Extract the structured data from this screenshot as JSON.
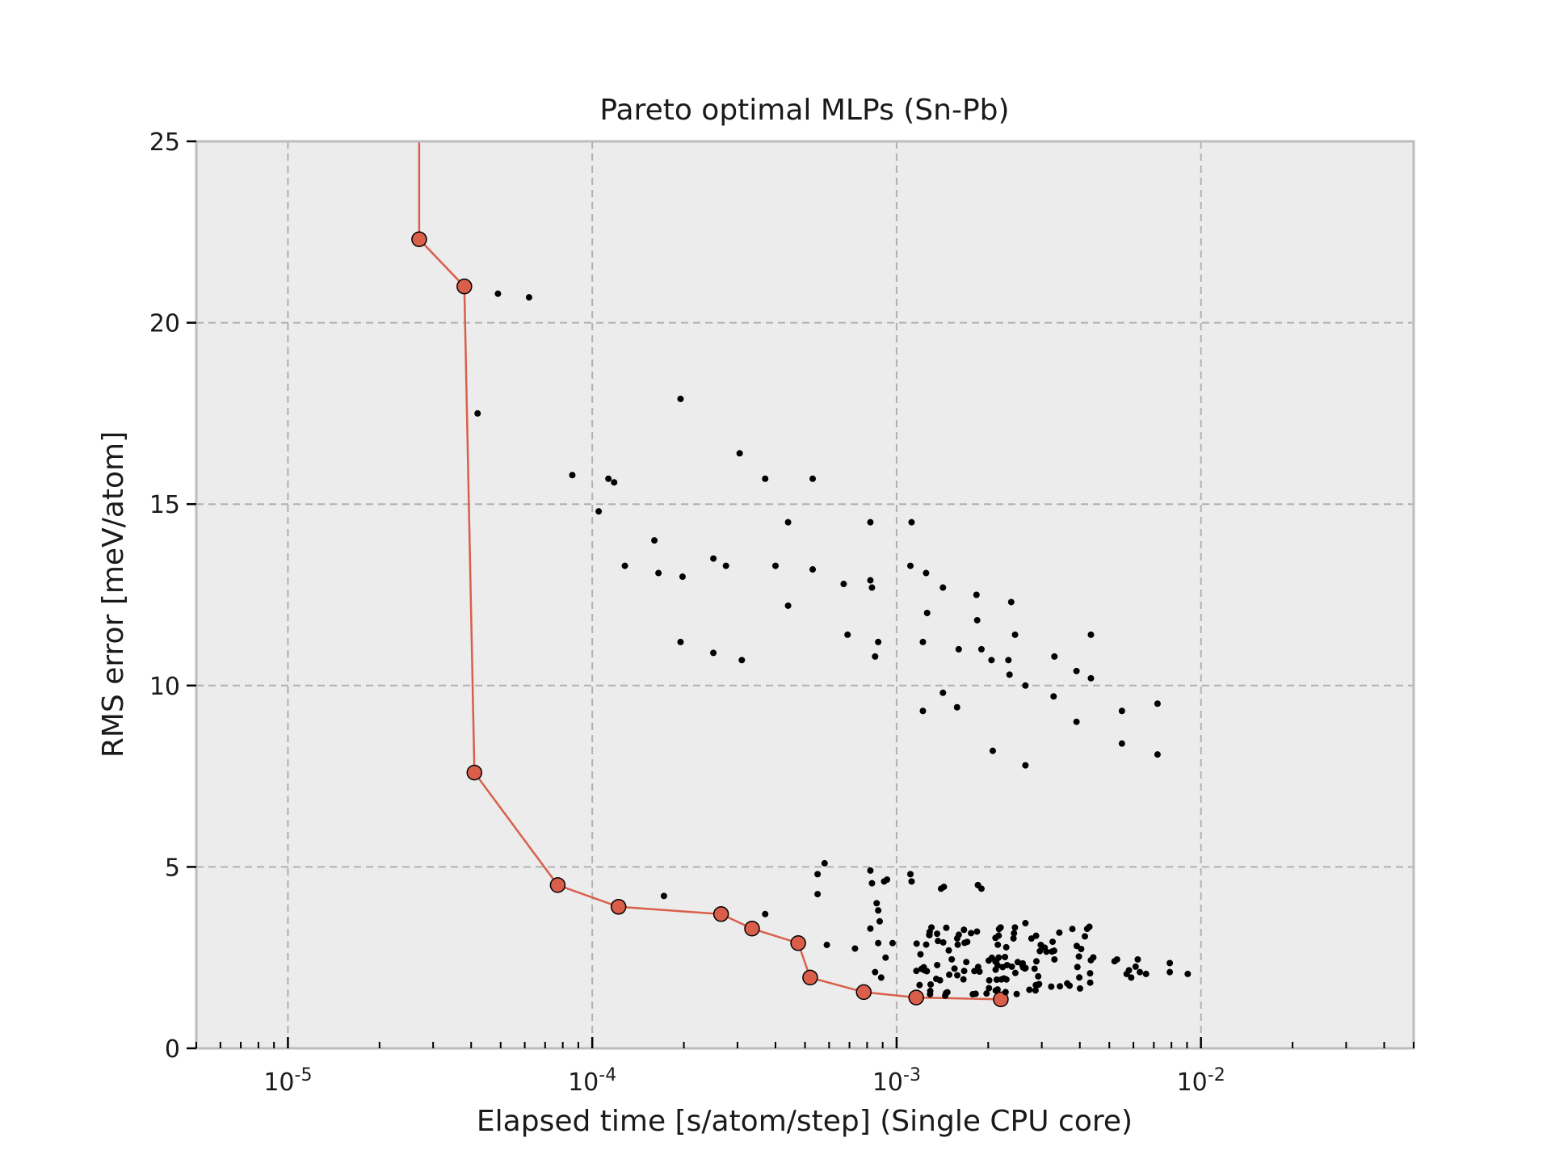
{
  "chart_data": {
    "type": "scatter",
    "title": "Pareto optimal MLPs (Sn-Pb)",
    "xlabel": "Elapsed time [s/atom/step] (Single CPU core)",
    "ylabel": "RMS error [meV/atom]",
    "x_scale": "log",
    "xlim": [
      5e-06,
      0.05
    ],
    "ylim": [
      0,
      25
    ],
    "x_ticks": [
      {
        "value": 1e-05,
        "base": "10",
        "exp": "-5"
      },
      {
        "value": 0.0001,
        "base": "10",
        "exp": "-4"
      },
      {
        "value": 0.001,
        "base": "10",
        "exp": "-3"
      },
      {
        "value": 0.01,
        "base": "10",
        "exp": "-2"
      }
    ],
    "y_ticks": [
      0,
      5,
      10,
      15,
      20,
      25
    ],
    "grid": true,
    "colors": {
      "background": "#ececec",
      "pareto": "#d95f4b",
      "points": "#000000",
      "grid": "#b0b0b0",
      "frame": "#bdbdbd"
    },
    "series": [
      {
        "kind": "pareto-front",
        "points": [
          [
            2.7e-05,
            25.0
          ],
          [
            2.7e-05,
            22.3
          ],
          [
            3.8e-05,
            21.0
          ],
          [
            4.1e-05,
            7.6
          ],
          [
            7.7e-05,
            4.5
          ],
          [
            0.000122,
            3.9
          ],
          [
            0.000265,
            3.7
          ],
          [
            0.000335,
            3.3
          ],
          [
            0.000475,
            2.9
          ],
          [
            0.00052,
            1.95
          ],
          [
            0.00078,
            1.55
          ],
          [
            0.00116,
            1.4
          ],
          [
            0.0022,
            1.35
          ]
        ]
      },
      {
        "kind": "candidates",
        "points": [
          [
            4.9e-05,
            20.8
          ],
          [
            6.2e-05,
            20.7
          ],
          [
            4.2e-05,
            17.5
          ],
          [
            0.000195,
            17.9
          ],
          [
            8.6e-05,
            15.8
          ],
          [
            0.000105,
            14.8
          ],
          [
            0.000113,
            15.7
          ],
          [
            0.000118,
            15.6
          ],
          [
            0.000305,
            16.4
          ],
          [
            0.00037,
            15.7
          ],
          [
            0.00053,
            15.7
          ],
          [
            0.00016,
            14.0
          ],
          [
            0.000128,
            13.3
          ],
          [
            0.000165,
            13.1
          ],
          [
            0.000198,
            13.0
          ],
          [
            0.00025,
            13.5
          ],
          [
            0.000275,
            13.3
          ],
          [
            0.0004,
            13.3
          ],
          [
            0.00044,
            14.5
          ],
          [
            0.00053,
            13.2
          ],
          [
            0.00044,
            12.2
          ],
          [
            0.00067,
            12.8
          ],
          [
            0.00082,
            12.9
          ],
          [
            0.00083,
            12.7
          ],
          [
            0.00082,
            14.5
          ],
          [
            0.00112,
            14.5
          ],
          [
            0.00111,
            13.3
          ],
          [
            0.00125,
            13.1
          ],
          [
            0.00142,
            12.7
          ],
          [
            0.00183,
            12.5
          ],
          [
            0.00238,
            12.3
          ],
          [
            0.00126,
            12.0
          ],
          [
            0.00184,
            11.8
          ],
          [
            0.0019,
            11.0
          ],
          [
            0.00245,
            11.4
          ],
          [
            0.000195,
            11.2
          ],
          [
            0.00025,
            10.9
          ],
          [
            0.00031,
            10.7
          ],
          [
            0.00069,
            11.4
          ],
          [
            0.00087,
            11.2
          ],
          [
            0.00085,
            10.8
          ],
          [
            0.00122,
            11.2
          ],
          [
            0.0016,
            11.0
          ],
          [
            0.00205,
            10.7
          ],
          [
            0.00233,
            10.7
          ],
          [
            0.00235,
            10.3
          ],
          [
            0.00265,
            10.0
          ],
          [
            0.0033,
            10.8
          ],
          [
            0.0039,
            10.4
          ],
          [
            0.00435,
            11.4
          ],
          [
            0.00435,
            10.2
          ],
          [
            0.00142,
            9.8
          ],
          [
            0.00122,
            9.3
          ],
          [
            0.00158,
            9.4
          ],
          [
            0.00328,
            9.7
          ],
          [
            0.0039,
            9.0
          ],
          [
            0.0055,
            9.3
          ],
          [
            0.0072,
            9.5
          ],
          [
            0.00207,
            8.2
          ],
          [
            0.0055,
            8.4
          ],
          [
            0.0072,
            8.1
          ],
          [
            0.00265,
            7.8
          ],
          [
            0.000172,
            4.2
          ],
          [
            0.00055,
            4.8
          ],
          [
            0.00058,
            5.1
          ],
          [
            0.00055,
            4.25
          ],
          [
            0.00082,
            4.9
          ],
          [
            0.00083,
            4.55
          ],
          [
            0.00091,
            4.6
          ],
          [
            0.00093,
            4.65
          ],
          [
            0.00111,
            4.8
          ],
          [
            0.00112,
            4.6
          ],
          [
            0.0014,
            4.4
          ],
          [
            0.00143,
            4.45
          ],
          [
            0.00185,
            4.5
          ],
          [
            0.0019,
            4.4
          ],
          [
            0.00086,
            4.0
          ],
          [
            0.00087,
            3.8
          ],
          [
            0.00037,
            3.7
          ],
          [
            0.00082,
            3.3
          ],
          [
            0.00088,
            3.5
          ],
          [
            0.00087,
            2.9
          ],
          [
            0.00059,
            2.85
          ],
          [
            0.00073,
            2.75
          ],
          [
            0.00097,
            2.9
          ],
          [
            0.00085,
            2.1
          ],
          [
            0.00089,
            1.95
          ],
          [
            0.00092,
            2.5
          ],
          [
            0.0043,
            3.35
          ],
          [
            0.00265,
            3.45
          ],
          [
            0.0033,
            2.45
          ],
          [
            0.0062,
            2.45
          ],
          [
            0.0079,
            2.35
          ],
          [
            0.00905,
            2.05
          ],
          [
            0.0079,
            2.1
          ],
          [
            0.0066,
            2.05
          ],
          [
            0.0063,
            2.1
          ],
          [
            0.0057,
            2.05
          ],
          [
            0.0058,
            2.15
          ],
          [
            0.0061,
            2.25
          ],
          [
            0.0059,
            1.95
          ],
          [
            0.0052,
            2.4
          ],
          [
            0.0053,
            2.45
          ]
        ]
      }
    ]
  }
}
